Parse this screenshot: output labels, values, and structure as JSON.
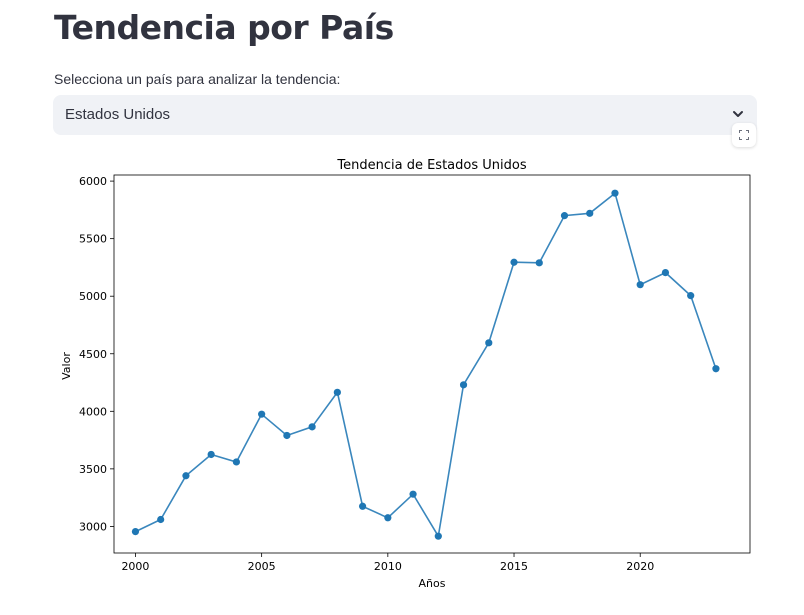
{
  "header": {
    "title": "Tendencia por País"
  },
  "selector": {
    "label": "Selecciona un país para analizar la tendencia:",
    "selected": "Estados Unidos"
  },
  "icons": {
    "select_chevron": "chevron-down-icon",
    "fullscreen": "fullscreen-icon"
  },
  "chart_data": {
    "type": "line",
    "title": "Tendencia de Estados Unidos",
    "xlabel": "Años",
    "ylabel": "Valor",
    "x": [
      2000,
      2001,
      2002,
      2003,
      2004,
      2005,
      2006,
      2007,
      2008,
      2009,
      2010,
      2011,
      2012,
      2013,
      2014,
      2015,
      2016,
      2017,
      2018,
      2019,
      2020,
      2021,
      2022,
      2023
    ],
    "series": [
      {
        "values": [
          2955,
          3060,
          3440,
          3625,
          3560,
          3975,
          3790,
          3865,
          4165,
          3175,
          3075,
          3280,
          2915,
          4230,
          4595,
          5295,
          5290,
          5700,
          5720,
          5895,
          5100,
          5205,
          5005,
          4370
        ]
      }
    ],
    "xticks": [
      2000,
      2005,
      2010,
      2015,
      2020
    ],
    "yticks": [
      3000,
      3500,
      4000,
      4500,
      5000,
      5500,
      6000
    ],
    "xlim": [
      1999.15,
      2024.35
    ],
    "ylim": [
      2769,
      6053
    ],
    "grid": false,
    "color": "#1f77b4",
    "line_color": "#3a87bd"
  }
}
